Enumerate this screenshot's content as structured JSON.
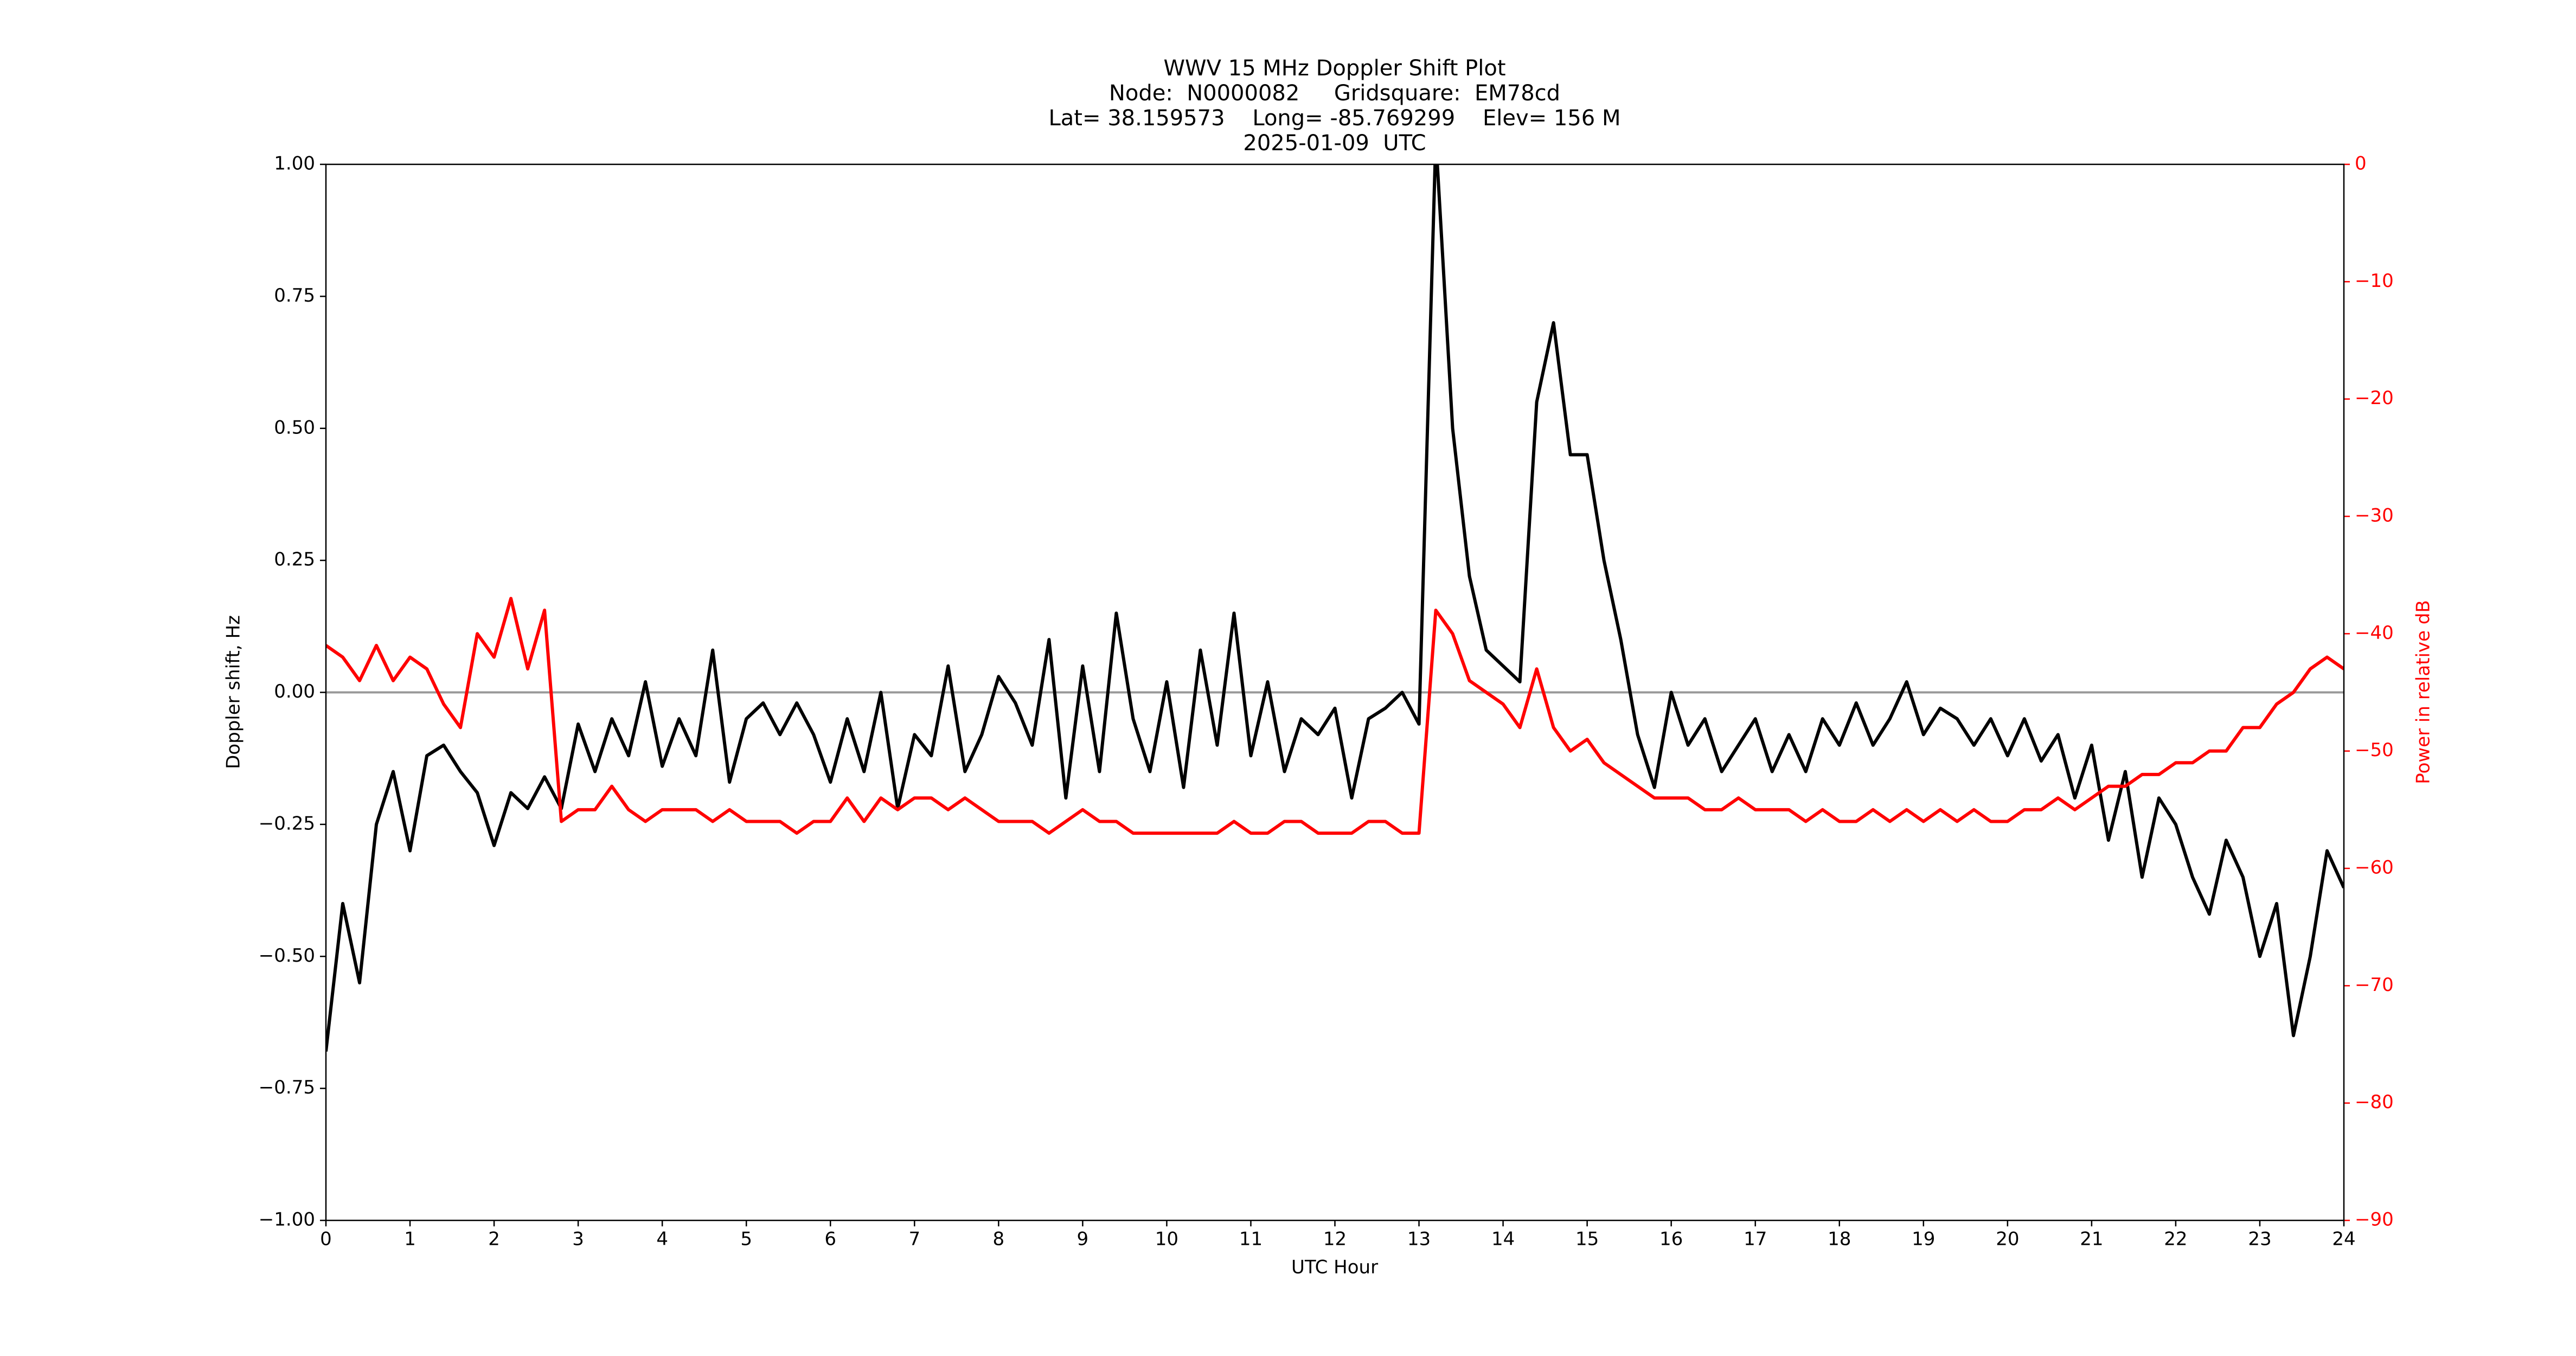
{
  "chart_data": {
    "type": "line",
    "title": "WWV 15 MHz Doppler Shift Plot",
    "subtitle": [
      "Node:  N0000082     Gridsquare:  EM78cd",
      "Lat= 38.159573    Long= -85.769299    Elev= 156 M",
      "2025-01-09  UTC"
    ],
    "xlabel": "UTC Hour",
    "ylabel": "Doppler shift, Hz",
    "y2label": "Power in relative dB",
    "y2color": "#ff0000",
    "x": [
      0,
      0.2,
      0.4,
      0.6,
      0.8,
      1,
      1.2,
      1.4,
      1.6,
      1.8,
      2,
      2.2,
      2.4,
      2.6,
      2.8,
      3,
      3.2,
      3.4,
      3.6,
      3.8,
      4,
      4.2,
      4.4,
      4.6,
      4.8,
      5,
      5.2,
      5.4,
      5.6,
      5.8,
      6,
      6.2,
      6.4,
      6.6,
      6.8,
      7,
      7.2,
      7.4,
      7.6,
      7.8,
      8,
      8.2,
      8.4,
      8.6,
      8.8,
      9,
      9.2,
      9.4,
      9.6,
      9.8,
      10,
      10.2,
      10.4,
      10.6,
      10.8,
      11,
      11.2,
      11.4,
      11.6,
      11.8,
      12,
      12.2,
      12.4,
      12.6,
      12.8,
      13,
      13.2,
      13.4,
      13.6,
      13.8,
      14,
      14.2,
      14.4,
      14.6,
      14.8,
      15,
      15.2,
      15.4,
      15.6,
      15.8,
      16,
      16.2,
      16.4,
      16.6,
      16.8,
      17,
      17.2,
      17.4,
      17.6,
      17.8,
      18,
      18.2,
      18.4,
      18.6,
      18.8,
      19,
      19.2,
      19.4,
      19.6,
      19.8,
      20,
      20.2,
      20.4,
      20.6,
      20.8,
      21,
      21.2,
      21.4,
      21.6,
      21.8,
      22,
      22.2,
      22.4,
      22.6,
      22.8,
      23,
      23.2,
      23.4,
      23.6,
      23.8,
      24
    ],
    "series": [
      {
        "color": "#000000",
        "values": [
          -0.68,
          -0.4,
          -0.55,
          -0.25,
          -0.15,
          -0.3,
          -0.12,
          -0.1,
          -0.15,
          -0.19,
          -0.29,
          -0.19,
          -0.22,
          -0.16,
          -0.22,
          -0.06,
          -0.15,
          -0.05,
          -0.12,
          0.02,
          -0.14,
          -0.05,
          -0.12,
          0.08,
          -0.17,
          -0.05,
          -0.02,
          -0.08,
          -0.02,
          -0.08,
          -0.17,
          -0.05,
          -0.15,
          0.0,
          -0.22,
          -0.08,
          -0.12,
          0.05,
          -0.15,
          -0.08,
          0.03,
          -0.02,
          -0.1,
          0.1,
          -0.2,
          0.05,
          -0.15,
          0.15,
          -0.05,
          -0.15,
          0.02,
          -0.18,
          0.08,
          -0.1,
          0.15,
          -0.12,
          0.02,
          -0.15,
          -0.05,
          -0.08,
          -0.03,
          -0.2,
          -0.05,
          -0.03,
          0.0,
          -0.06,
          1.05,
          0.5,
          0.22,
          0.08,
          0.05,
          0.02,
          0.55,
          0.7,
          0.45,
          0.45,
          0.25,
          0.1,
          -0.08,
          -0.18,
          0.0,
          -0.1,
          -0.05,
          -0.15,
          -0.1,
          -0.05,
          -0.15,
          -0.08,
          -0.15,
          -0.05,
          -0.1,
          -0.02,
          -0.1,
          -0.05,
          0.02,
          -0.08,
          -0.03,
          -0.05,
          -0.1,
          -0.05,
          -0.12,
          -0.05,
          -0.13,
          -0.08,
          -0.2,
          -0.1,
          -0.28,
          -0.15,
          -0.35,
          -0.2,
          -0.25,
          -0.35,
          -0.42,
          -0.28,
          -0.35,
          -0.5,
          -0.4,
          -0.65,
          -0.5,
          -0.3,
          -0.37
        ]
      },
      {
        "color": "#ff0000",
        "axis": "y2",
        "values": [
          -41,
          -42,
          -44,
          -41,
          -44,
          -42,
          -43,
          -46,
          -48,
          -40,
          -42,
          -37,
          -43,
          -38,
          -56,
          -55,
          -55,
          -53,
          -55,
          -56,
          -55,
          -55,
          -55,
          -56,
          -55,
          -56,
          -56,
          -56,
          -57,
          -56,
          -56,
          -54,
          -56,
          -54,
          -55,
          -54,
          -54,
          -55,
          -54,
          -55,
          -56,
          -56,
          -56,
          -57,
          -56,
          -55,
          -56,
          -56,
          -57,
          -57,
          -57,
          -57,
          -57,
          -57,
          -56,
          -57,
          -57,
          -56,
          -56,
          -57,
          -57,
          -57,
          -56,
          -56,
          -57,
          -57,
          -38,
          -40,
          -44,
          -45,
          -46,
          -48,
          -43,
          -48,
          -50,
          -49,
          -51,
          -52,
          -53,
          -54,
          -54,
          -54,
          -55,
          -55,
          -54,
          -55,
          -55,
          -55,
          -56,
          -55,
          -56,
          -56,
          -55,
          -56,
          -55,
          -56,
          -55,
          -56,
          -55,
          -56,
          -56,
          -55,
          -55,
          -54,
          -55,
          -54,
          -53,
          -53,
          -52,
          -52,
          -51,
          -51,
          -50,
          -50,
          -48,
          -48,
          -46,
          -45,
          -43,
          -42,
          -43
        ]
      }
    ],
    "reference_line": 0,
    "reference_color": "#999999",
    "xlim": [
      0,
      24
    ],
    "xticks": [
      0,
      1,
      2,
      3,
      4,
      5,
      6,
      7,
      8,
      9,
      10,
      11,
      12,
      13,
      14,
      15,
      16,
      17,
      18,
      19,
      20,
      21,
      22,
      23,
      24
    ],
    "ylim": [
      -1,
      1
    ],
    "yticks": [
      {
        "value": -1,
        "label": "−1.00"
      },
      {
        "value": -0.75,
        "label": "−0.75"
      },
      {
        "value": -0.5,
        "label": "−0.50"
      },
      {
        "value": -0.25,
        "label": "−0.25"
      },
      {
        "value": 0,
        "label": "0.00"
      },
      {
        "value": 0.25,
        "label": "0.25"
      },
      {
        "value": 0.5,
        "label": "0.50"
      },
      {
        "value": 0.75,
        "label": "0.75"
      },
      {
        "value": 1,
        "label": "1.00"
      }
    ],
    "y2lim": [
      -90,
      0
    ],
    "y2ticks": [
      {
        "value": -90,
        "label": "−90"
      },
      {
        "value": -80,
        "label": "−80"
      },
      {
        "value": -70,
        "label": "−70"
      },
      {
        "value": -60,
        "label": "−60"
      },
      {
        "value": -50,
        "label": "−50"
      },
      {
        "value": -40,
        "label": "−40"
      },
      {
        "value": -30,
        "label": "−30"
      },
      {
        "value": -20,
        "label": "−20"
      },
      {
        "value": -10,
        "label": "−10"
      },
      0
    ],
    "grid": false
  }
}
